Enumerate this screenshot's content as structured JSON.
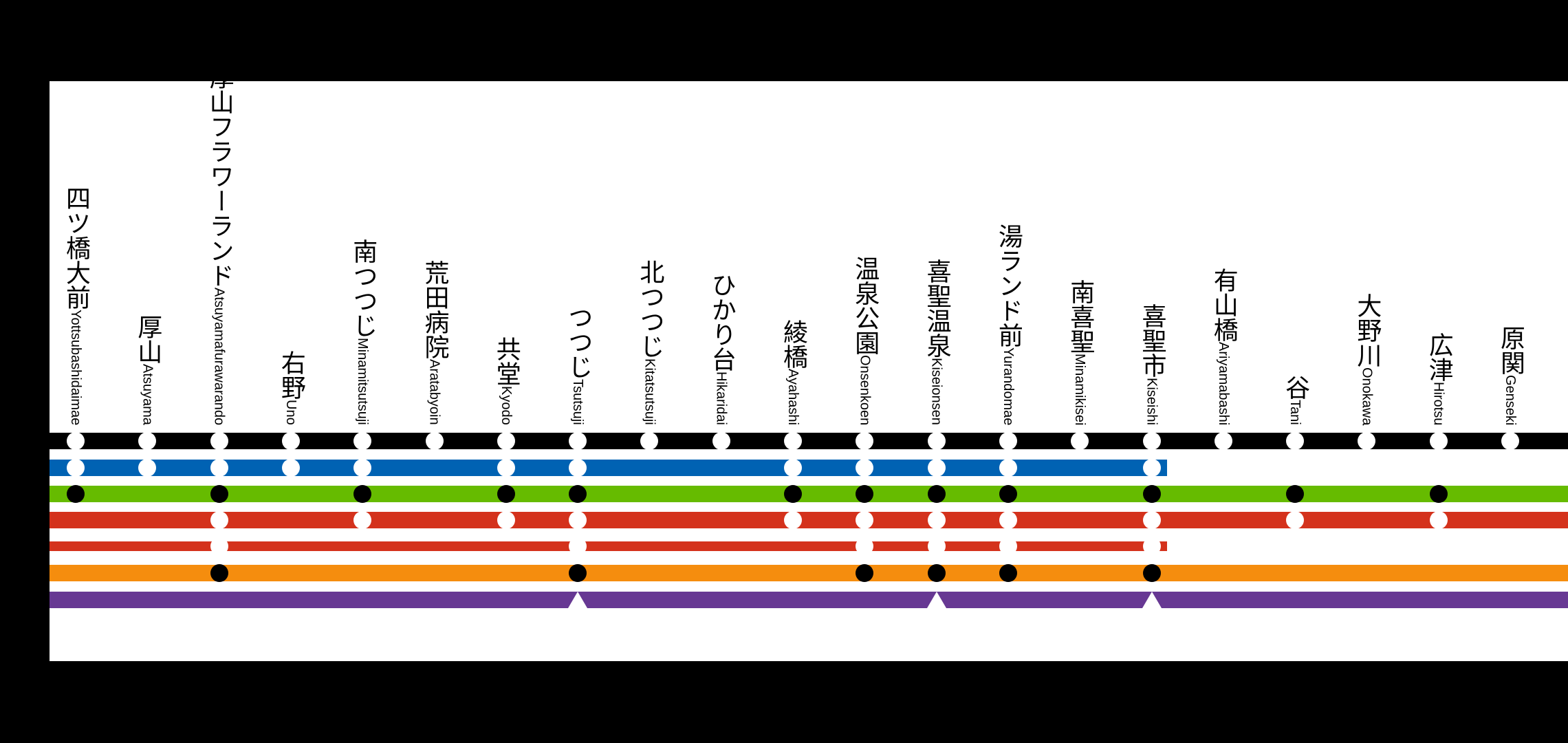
{
  "stations": [
    {
      "ja": "四ツ橋大前",
      "en": "Yottsubashidaimae"
    },
    {
      "ja": "厚山",
      "en": "Atsuyama"
    },
    {
      "ja": "厚山フラワーランド",
      "en": "Atsuyamafurawarando"
    },
    {
      "ja": "右野",
      "en": "Uno"
    },
    {
      "ja": "南つつじ",
      "en": "Minamitsutsuji"
    },
    {
      "ja": "荒田病院",
      "en": "Aratabyoin"
    },
    {
      "ja": "共堂",
      "en": "Kyodo"
    },
    {
      "ja": "つつじ",
      "en": "Tsutsuji"
    },
    {
      "ja": "北つつじ",
      "en": "Kitatsutsuji"
    },
    {
      "ja": "ひかり台",
      "en": "Hikaridai"
    },
    {
      "ja": "綾橋",
      "en": "Ayahashi"
    },
    {
      "ja": "温泉公園",
      "en": "Onsenkoen"
    },
    {
      "ja": "喜聖温泉",
      "en": "Kiseionsen"
    },
    {
      "ja": "湯ランド前",
      "en": "Yurandomae"
    },
    {
      "ja": "南喜聖",
      "en": "Minamikisei"
    },
    {
      "ja": "喜聖市",
      "en": "Kiseishi"
    },
    {
      "ja": "有山橋",
      "en": "Ariyamabashi"
    },
    {
      "ja": "谷",
      "en": "Tani"
    },
    {
      "ja": "大野川",
      "en": "Onokawa"
    },
    {
      "ja": "広津",
      "en": "Hirotsu"
    },
    {
      "ja": "原関",
      "en": "Genseki"
    }
  ],
  "lines": [
    {
      "color": "#000000",
      "ends_at_station": null,
      "stops": {
        "0": "white",
        "1": "white",
        "2": "white",
        "3": "white",
        "4": "white",
        "5": "white",
        "6": "white",
        "7": "white",
        "8": "white",
        "9": "white",
        "10": "white",
        "11": "white",
        "12": "white",
        "13": "white",
        "14": "white",
        "15": "white",
        "16": "white",
        "17": "white",
        "18": "white",
        "19": "white",
        "20": "white"
      }
    },
    {
      "color": "#0062b3",
      "ends_at_station": 15,
      "stops": {
        "0": "white",
        "1": "white",
        "2": "white",
        "3": "white",
        "4": "white",
        "6": "white",
        "7": "white",
        "10": "white",
        "11": "white",
        "12": "white",
        "13": "white",
        "15": "white"
      }
    },
    {
      "color": "#66bb00",
      "ends_at_station": null,
      "stops": {
        "0": "black",
        "2": "black",
        "4": "black",
        "6": "black",
        "7": "black",
        "10": "black",
        "11": "black",
        "12": "black",
        "13": "black",
        "15": "black",
        "17": "black",
        "19": "black"
      }
    },
    {
      "color": "#d4321c",
      "ends_at_station": null,
      "stops": {
        "2": "white",
        "4": "white",
        "6": "white",
        "7": "white",
        "10": "white",
        "11": "white",
        "12": "white",
        "13": "white",
        "15": "white",
        "17": "white",
        "19": "white"
      }
    },
    {
      "color": "#d4321c",
      "ends_at_station": 15,
      "thin": true,
      "stops": {
        "2": "white",
        "7": "white",
        "11": "white",
        "12": "white",
        "13": "white",
        "15": "white"
      }
    },
    {
      "color": "#f58d0e",
      "ends_at_station": null,
      "stops": {
        "2": "black",
        "7": "black",
        "11": "black",
        "12": "black",
        "13": "black",
        "15": "black"
      }
    },
    {
      "color": "#673893",
      "ends_at_station": null,
      "stops": {
        "7": "triangle",
        "12": "triangle",
        "15": "triangle"
      }
    }
  ]
}
